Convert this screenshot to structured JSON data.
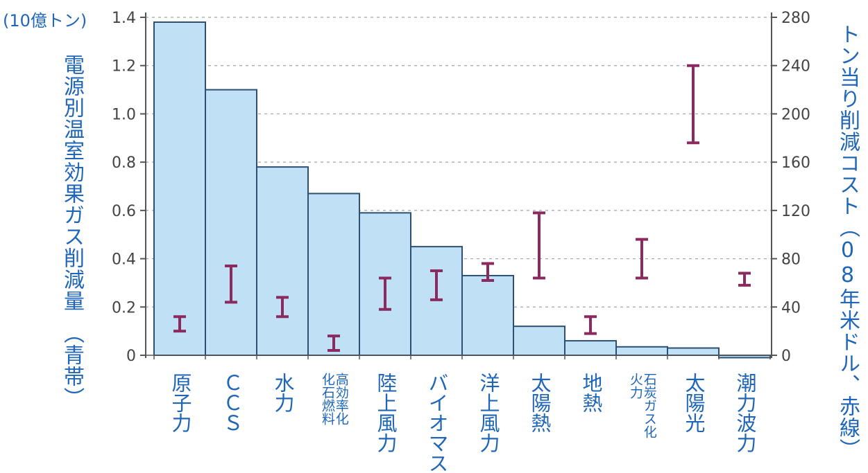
{
  "chart_data": {
    "type": "bar",
    "unit_label": "(10億トン)",
    "ylabel_left": "電源別温室効果ガス削減量　（青帯）",
    "ylabel_right": "トン当り削減コスト（08年米ドル、赤線）",
    "categories": [
      "原子力",
      "ＣＣＳ",
      "水力",
      "高効率化\n化石燃料",
      "陸上風力",
      "バイオマス",
      "洋上風力",
      "太陽熱",
      "地熱",
      "石炭ガス化\n火力",
      "太陽光",
      "潮力波力"
    ],
    "left_axis": {
      "ylim": [
        0,
        1.4
      ],
      "ticks": [
        "0",
        "0.2",
        "0.4",
        "0.6",
        "0.8",
        "1.0",
        "1.2",
        "1.4"
      ]
    },
    "right_axis": {
      "ylim": [
        0,
        280
      ],
      "ticks": [
        "0",
        "40",
        "80",
        "120",
        "160",
        "200",
        "240",
        "280"
      ]
    },
    "series": [
      {
        "axis": "left",
        "color": "#bfe0f5",
        "values": [
          1.38,
          1.1,
          0.78,
          0.67,
          0.59,
          0.45,
          0.33,
          0.12,
          0.06,
          0.035,
          0.03,
          -0.01
        ]
      },
      {
        "axis": "right",
        "color": "#8a2a5e",
        "ranges": [
          [
            20,
            32
          ],
          [
            44,
            74
          ],
          [
            32,
            48
          ],
          [
            4,
            16
          ],
          [
            38,
            64
          ],
          [
            46,
            70
          ],
          [
            62,
            76
          ],
          [
            64,
            118
          ],
          [
            18,
            32
          ],
          [
            64,
            96
          ],
          [
            176,
            240
          ],
          [
            58,
            68
          ]
        ]
      }
    ],
    "grid": "horizontal dashed",
    "legend": "none"
  }
}
